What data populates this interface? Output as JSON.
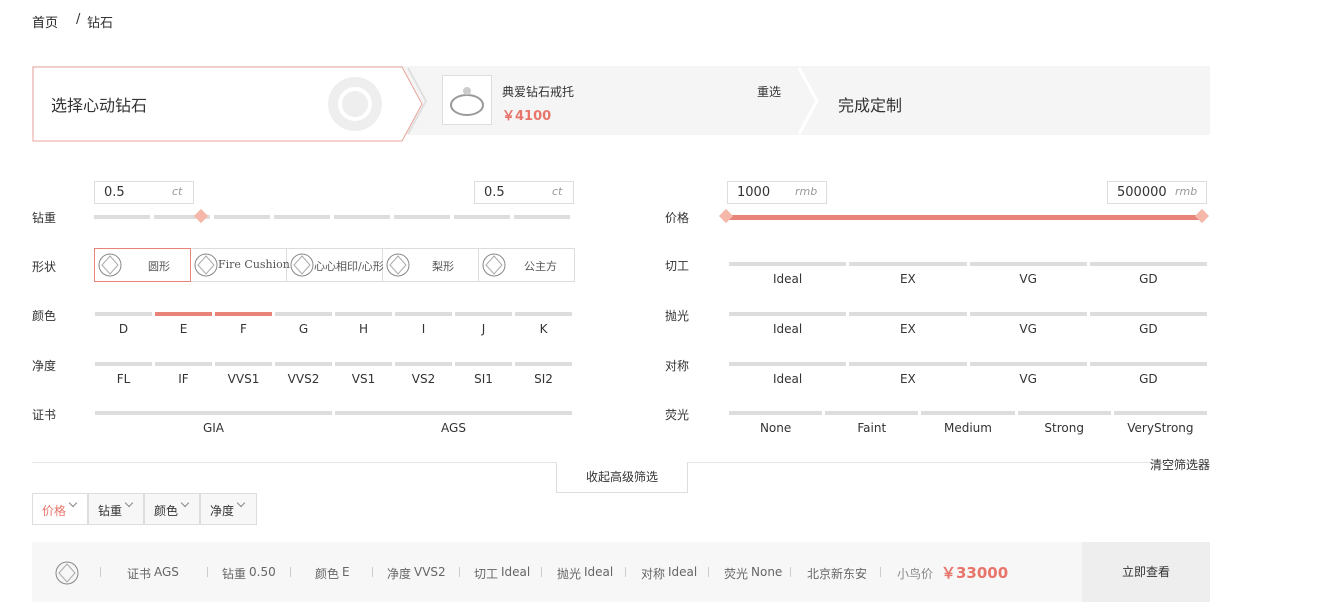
{
  "breadcrumb": {
    "home": "首页",
    "separator": "/",
    "current": "钻石"
  },
  "steps": {
    "step1": "选择心动钻石",
    "setting": {
      "name": "典爱钻石戒托",
      "price": "￥4100",
      "reselect": "重选"
    },
    "step3": "完成定制"
  },
  "filters": {
    "carat": {
      "label": "钻重",
      "min": "0.5",
      "max": "0.5",
      "unit": "ct"
    },
    "shape": {
      "label": "形状",
      "options": [
        "圆形",
        "Fire Cushion",
        "心心相印/心形",
        "梨形",
        "公主方"
      ],
      "selected": [
        0
      ]
    },
    "color": {
      "label": "颜色",
      "options": [
        "D",
        "E",
        "F",
        "G",
        "H",
        "I",
        "J",
        "K"
      ],
      "selected": [
        1,
        2
      ]
    },
    "clarity": {
      "label": "净度",
      "options": [
        "FL",
        "IF",
        "VVS1",
        "VVS2",
        "VS1",
        "VS2",
        "SI1",
        "SI2"
      ],
      "selected": []
    },
    "certificate": {
      "label": "证书",
      "options": [
        "GIA",
        "AGS"
      ],
      "selected": []
    },
    "price": {
      "label": "价格",
      "min": "1000",
      "max": "500000",
      "unit": "rmb"
    },
    "cut": {
      "label": "切工",
      "options": [
        "Ideal",
        "EX",
        "VG",
        "GD"
      ],
      "selected": []
    },
    "polish": {
      "label": "抛光",
      "options": [
        "Ideal",
        "EX",
        "VG",
        "GD"
      ],
      "selected": []
    },
    "symmetry": {
      "label": "对称",
      "options": [
        "Ideal",
        "EX",
        "VG",
        "GD"
      ],
      "selected": []
    },
    "fluorescence": {
      "label": "荧光",
      "options": [
        "None",
        "Faint",
        "Medium",
        "Strong",
        "VeryStrong"
      ],
      "selected": []
    },
    "collapse": "收起高级筛选",
    "clear": "清空筛选器"
  },
  "sort": {
    "options": [
      "价格",
      "钻重",
      "颜色",
      "净度"
    ],
    "active": 0
  },
  "result": {
    "specs": [
      {
        "label": "证书",
        "value": "AGS"
      },
      {
        "label": "钻重",
        "value": "0.50"
      },
      {
        "label": "颜色",
        "value": "E"
      },
      {
        "label": "净度",
        "value": "VVS2"
      },
      {
        "label": "切工",
        "value": "Ideal"
      },
      {
        "label": "抛光",
        "value": "Ideal"
      },
      {
        "label": "对称",
        "value": "Ideal"
      },
      {
        "label": "荧光",
        "value": "None"
      }
    ],
    "store": "北京新东安",
    "price_label": "小鸟价",
    "price": "￥33000",
    "action": "立即查看"
  }
}
